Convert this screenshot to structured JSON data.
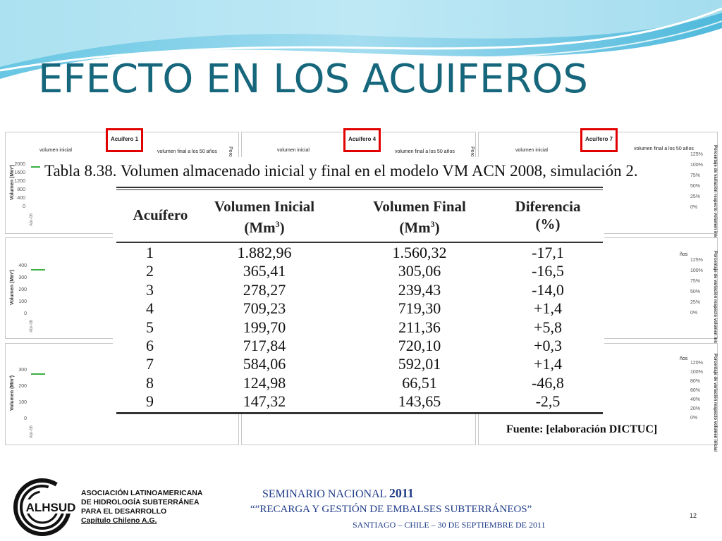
{
  "slide": {
    "title": "EFECTO EN LOS ACUIFEROS",
    "page_number": "12"
  },
  "colors": {
    "title": "#17677c",
    "wave_light": "#c9ecf6",
    "wave_mid": "#7fd0ea",
    "wave_dark": "#3bb1d8",
    "highlight_box": "#e00000",
    "footer_text": "#1f3c88"
  },
  "background_panels": {
    "tags": [
      "Acuífero 1",
      "Acuífero 4",
      "Acuífero 7"
    ],
    "initial_label": "volumen inicial",
    "final_label": "volumen final a los 50 años",
    "y_axis_label": "Volumen (Mm³)",
    "right_axis_label": "Porcentaje de variación respecto volumen inicial",
    "date_tick": "Abr-06",
    "row1_yticks": [
      "2000",
      "1600",
      "1200",
      "800",
      "400",
      "0"
    ],
    "row2_yticks": [
      "400",
      "300",
      "200",
      "100",
      "0"
    ],
    "row3_yticks": [
      "300",
      "200",
      "100",
      "0"
    ],
    "row1_rticks": [
      "125%",
      "100%",
      "75%",
      "50%",
      "25%",
      "0%"
    ],
    "row2_rticks": [
      "125%",
      "100%",
      "75%",
      "50%",
      "25%",
      "0%"
    ],
    "row3_rticks": [
      "120%",
      "100%",
      "80%",
      "60%",
      "40%",
      "20%",
      "0%"
    ],
    "row2_right_top": "ños",
    "row3_right_top": "ños",
    "cut_label": "Porce"
  },
  "table": {
    "caption": "Tabla 8.38. Volumen almacenado inicial y final en el modelo VM ACN 2008, simulación 2.",
    "headers": {
      "col1": "Acuífero",
      "col2_line1": "Volumen Inicial",
      "col2_line2": "(Mm",
      "col3_line1": "Volumen Final",
      "col3_line2": "(Mm",
      "col4_line1": "Diferencia",
      "col4_line2": "(%)",
      "superscript": "3",
      "close_paren": ")"
    },
    "rows": [
      {
        "acuifero": "1",
        "inicial": "1.882,96",
        "final": "1.560,32",
        "diferencia": "-17,1"
      },
      {
        "acuifero": "2",
        "inicial": "365,41",
        "final": "305,06",
        "diferencia": "-16,5"
      },
      {
        "acuifero": "3",
        "inicial": "278,27",
        "final": "239,43",
        "diferencia": "-14,0"
      },
      {
        "acuifero": "4",
        "inicial": "709,23",
        "final": "719,30",
        "diferencia": "+1,4"
      },
      {
        "acuifero": "5",
        "inicial": "199,70",
        "final": "211,36",
        "diferencia": "+5,8"
      },
      {
        "acuifero": "6",
        "inicial": "717,84",
        "final": "720,10",
        "diferencia": "+0,3"
      },
      {
        "acuifero": "7",
        "inicial": "584,06",
        "final": "592,01",
        "diferencia": "+1,4"
      },
      {
        "acuifero": "8",
        "inicial": "124,98",
        "final": "66,51",
        "diferencia": "-46,8"
      },
      {
        "acuifero": "9",
        "inicial": "147,32",
        "final": "143,65",
        "diferencia": "-2,5"
      }
    ],
    "source": "Fuente: [elaboración DICTUC]"
  },
  "footer": {
    "logo_text": "ALHSUD",
    "org_line1": "ASOCIACIÓN LATINOAMERICANA",
    "org_line2": "DE HIDROLOGÍA SUBTERRÁNEA",
    "org_line3": "PARA EL DESARROLLO",
    "org_line4": "Capítulo Chileno A.G.",
    "seminar_name": "SEMINARIO NACIONAL",
    "seminar_year": "2011",
    "seminar_topic": "“”RECARGA Y GESTIÓN DE EMBALSES SUBTERRÁNEOS”",
    "seminar_place": "SANTIAGO – CHILE – 30 DE SEPTIEMBRE DE 2011"
  }
}
